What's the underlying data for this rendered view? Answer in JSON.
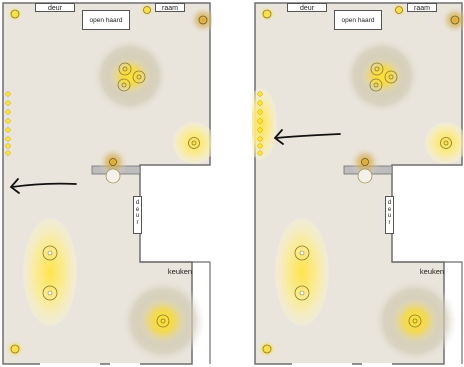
{
  "floorplan": {
    "labels": {
      "door_top": "deur",
      "open_hearth": "open haard",
      "window": "raam",
      "door_side": "d\ne\nu\nr",
      "kitchen": "keuken"
    },
    "colors": {
      "floor": "#e9e5dc",
      "wall": "#6f6f6f",
      "light_core": "#ffe233",
      "light_glow": "#f6d22b",
      "arrow": "#111111"
    }
  }
}
